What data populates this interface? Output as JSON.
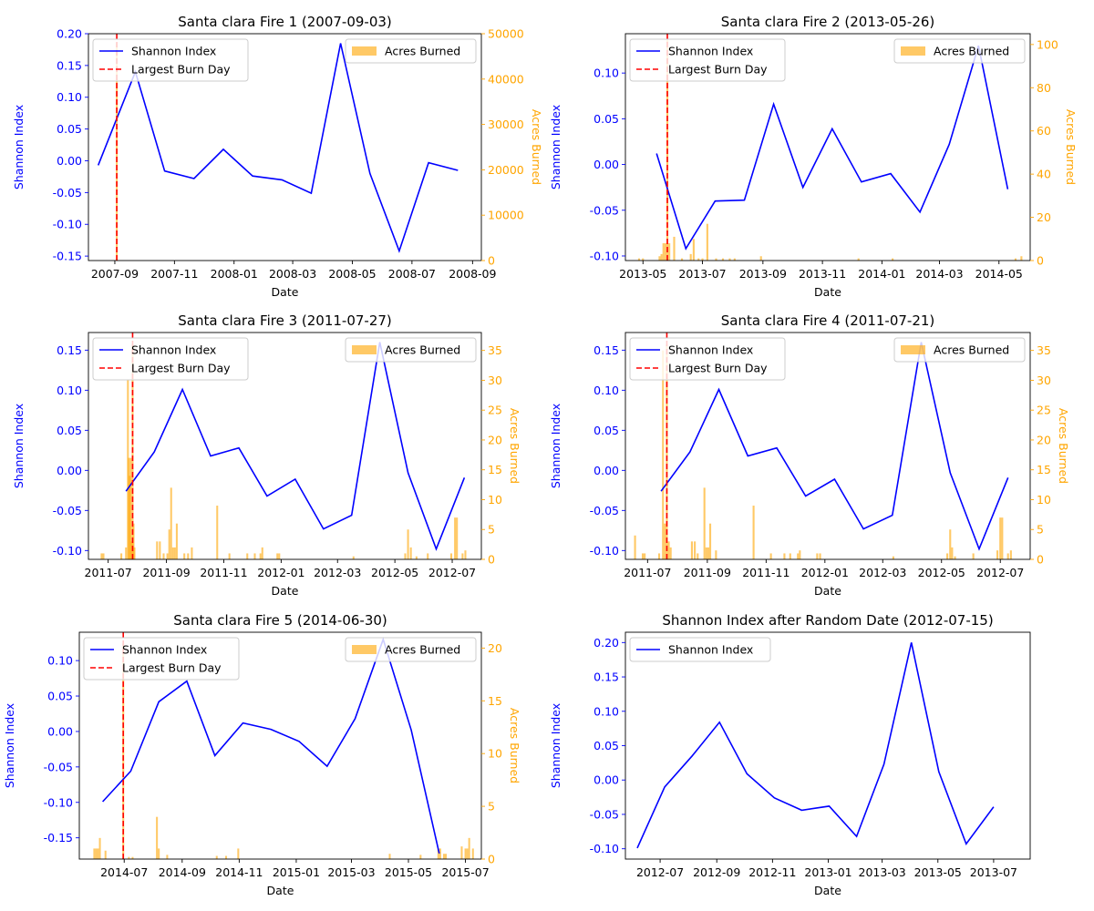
{
  "figure": {
    "background": "#ffffff"
  },
  "colors": {
    "shannon": "#0000ff",
    "acres": "#ffa500",
    "burn_line": "#ff0000",
    "axis": "#000000"
  },
  "legend_labels": {
    "shannon": "Shannon Index",
    "burn": "Largest Burn Day",
    "acres": "Acres Burned"
  },
  "chart_data": [
    {
      "type": "line",
      "title": "Santa clara Fire 1 (2007-09-03)",
      "xlabel": "Date",
      "ylabel": "Shannon Index",
      "y2label": "Acres Burned",
      "xlim": [
        "2007-08-05",
        "2008-09-10"
      ],
      "ylim": [
        -0.157,
        0.2
      ],
      "y2lim": [
        0,
        50000
      ],
      "xticks": [
        "2007-09",
        "2007-11",
        "2008-01",
        "2008-03",
        "2008-05",
        "2008-07",
        "2008-09"
      ],
      "yticks": [
        -0.15,
        -0.1,
        -0.05,
        0.0,
        0.05,
        0.1,
        0.15,
        0.2
      ],
      "y2ticks": [
        0,
        10000,
        20000,
        30000,
        40000,
        50000
      ],
      "legend_left": "upper-left",
      "legend_right": "upper-right",
      "series": [
        {
          "name": "Shannon Index",
          "x": [
            "2007-08-15",
            "2007-09-22",
            "2007-10-22",
            "2007-11-21",
            "2007-12-21",
            "2008-01-20",
            "2008-02-19",
            "2008-03-20",
            "2008-04-19",
            "2008-05-19",
            "2008-06-18",
            "2008-07-18",
            "2008-08-17"
          ],
          "y": [
            -0.007,
            0.14,
            -0.016,
            -0.028,
            0.018,
            -0.024,
            -0.03,
            -0.051,
            0.185,
            -0.02,
            -0.142,
            -0.003,
            -0.015
          ]
        }
      ],
      "burn_day": "2007-09-03",
      "bars": {
        "name": "Acres Burned",
        "x": [
          "2007-09-03"
        ],
        "y": [
          48000
        ],
        "width_days": 1
      }
    },
    {
      "type": "line",
      "title": "Santa clara Fire 2 (2013-05-26)",
      "xlabel": "Date",
      "ylabel": "Shannon Index",
      "y2label": "Acres Burned",
      "xlim": [
        "2013-04-13",
        "2014-06-02"
      ],
      "ylim": [
        -0.105,
        0.143
      ],
      "y2lim": [
        0,
        105
      ],
      "xticks": [
        "2013-05",
        "2013-07",
        "2013-09",
        "2013-11",
        "2014-01",
        "2014-03",
        "2014-05"
      ],
      "yticks": [
        -0.1,
        -0.05,
        0.0,
        0.05,
        0.1
      ],
      "y2ticks": [
        0,
        20,
        40,
        60,
        80,
        100
      ],
      "legend_left": "upper-left",
      "legend_right": "upper-right",
      "series": [
        {
          "name": "Shannon Index",
          "x": [
            "2013-05-15",
            "2013-06-14",
            "2013-07-14",
            "2013-08-13",
            "2013-09-12",
            "2013-10-12",
            "2013-11-11",
            "2013-12-11",
            "2014-01-10",
            "2014-02-09",
            "2014-03-11",
            "2014-04-10",
            "2014-05-10"
          ],
          "y": [
            0.012,
            -0.092,
            -0.04,
            -0.039,
            0.066,
            -0.025,
            0.039,
            -0.019,
            -0.01,
            -0.052,
            0.022,
            0.13,
            -0.027
          ]
        }
      ],
      "burn_day": "2013-05-26",
      "bars": {
        "name": "Acres Burned",
        "x": [
          "2013-04-27",
          "2013-05-01",
          "2013-05-18",
          "2013-05-20",
          "2013-05-22",
          "2013-05-24",
          "2013-05-26",
          "2013-05-28",
          "2013-06-02",
          "2013-06-10",
          "2013-06-19",
          "2013-06-22",
          "2013-06-27",
          "2013-07-01",
          "2013-07-06",
          "2013-07-15",
          "2013-07-22",
          "2013-07-29",
          "2013-08-03",
          "2013-08-30",
          "2013-12-08",
          "2014-01-12",
          "2014-05-18",
          "2014-05-24"
        ],
        "y": [
          1,
          1,
          2,
          3,
          8,
          8,
          102,
          8,
          11,
          1,
          3,
          10,
          1,
          1,
          17,
          1,
          1,
          1,
          1,
          2,
          1,
          1,
          1,
          2
        ],
        "width_days": 2
      }
    },
    {
      "type": "line",
      "title": "Santa clara Fire 3 (2011-07-27)",
      "xlabel": "Date",
      "ylabel": "Shannon Index",
      "y2label": "Acres Burned",
      "xlim": [
        "2011-06-10",
        "2012-08-01"
      ],
      "ylim": [
        -0.111,
        0.172
      ],
      "y2lim": [
        0,
        38
      ],
      "xticks": [
        "2011-07",
        "2011-09",
        "2011-11",
        "2012-01",
        "2012-03",
        "2012-05",
        "2012-07"
      ],
      "yticks": [
        -0.1,
        -0.05,
        0.0,
        0.05,
        0.1,
        0.15
      ],
      "y2ticks": [
        0,
        5,
        10,
        15,
        20,
        25,
        30,
        35
      ],
      "legend_left": "upper-left",
      "legend_right": "upper-right",
      "series": [
        {
          "name": "Shannon Index",
          "x": [
            "2011-07-20",
            "2011-08-19",
            "2011-09-18",
            "2011-10-18",
            "2011-11-17",
            "2011-12-17",
            "2012-01-16",
            "2012-02-15",
            "2012-03-16",
            "2012-04-15",
            "2012-05-15",
            "2012-06-14",
            "2012-07-14"
          ],
          "y": [
            -0.026,
            0.023,
            0.101,
            0.018,
            0.028,
            -0.032,
            -0.011,
            -0.073,
            -0.056,
            0.16,
            -0.003,
            -0.098,
            -0.009
          ]
        }
      ],
      "burn_day": "2011-07-27",
      "bars": {
        "name": "Acres Burned",
        "x": [
          "2011-06-24",
          "2011-06-26",
          "2011-07-15",
          "2011-07-20",
          "2011-07-22",
          "2011-07-23",
          "2011-07-24",
          "2011-07-25",
          "2011-07-26",
          "2011-07-27",
          "2011-07-28",
          "2011-07-29",
          "2011-08-22",
          "2011-08-25",
          "2011-08-29",
          "2011-09-02",
          "2011-09-04",
          "2011-09-06",
          "2011-09-08",
          "2011-09-10",
          "2011-09-12",
          "2011-09-20",
          "2011-09-24",
          "2011-09-28",
          "2011-10-25",
          "2011-11-07",
          "2011-11-26",
          "2011-12-04",
          "2011-12-10",
          "2011-12-12",
          "2011-12-28",
          "2011-12-30",
          "2012-03-18",
          "2012-05-12",
          "2012-05-15",
          "2012-05-18",
          "2012-05-24",
          "2012-06-05",
          "2012-06-30",
          "2012-07-04",
          "2012-07-06",
          "2012-07-12",
          "2012-07-15"
        ],
        "y": [
          1,
          1,
          1,
          2,
          30,
          17,
          14,
          17,
          3,
          36,
          6,
          2,
          3,
          3,
          1,
          1,
          5,
          12,
          2,
          2,
          6,
          1,
          1,
          2,
          9,
          1,
          1,
          1,
          1,
          2,
          1,
          1,
          0.5,
          1,
          5,
          2,
          0.5,
          1,
          1,
          7,
          7,
          1,
          1.5
        ],
        "width_days": 2
      }
    },
    {
      "type": "line",
      "title": "Santa clara Fire 4 (2011-07-21)",
      "xlabel": "Date",
      "ylabel": "Shannon Index",
      "y2label": "Acres Burned",
      "xlim": [
        "2011-06-08",
        "2012-08-01"
      ],
      "ylim": [
        -0.111,
        0.172
      ],
      "y2lim": [
        0,
        38
      ],
      "xticks": [
        "2011-07",
        "2011-09",
        "2011-11",
        "2012-01",
        "2012-03",
        "2012-05",
        "2012-07"
      ],
      "yticks": [
        -0.1,
        -0.05,
        0.0,
        0.05,
        0.1,
        0.15
      ],
      "y2ticks": [
        0,
        5,
        10,
        15,
        20,
        25,
        30,
        35
      ],
      "legend_left": "upper-left",
      "legend_right": "upper-right",
      "series": [
        {
          "name": "Shannon Index",
          "x": [
            "2011-07-15",
            "2011-08-14",
            "2011-09-13",
            "2011-10-13",
            "2011-11-12",
            "2011-12-12",
            "2012-01-11",
            "2012-02-10",
            "2012-03-11",
            "2012-04-10",
            "2012-05-10",
            "2012-06-09",
            "2012-07-09"
          ],
          "y": [
            -0.026,
            0.023,
            0.101,
            0.018,
            0.028,
            -0.032,
            -0.011,
            -0.073,
            -0.056,
            0.16,
            -0.003,
            -0.098,
            -0.009
          ]
        }
      ],
      "burn_day": "2011-07-21",
      "bars": {
        "name": "Acres Burned",
        "x": [
          "2011-06-18",
          "2011-06-26",
          "2011-06-28",
          "2011-07-13",
          "2011-07-17",
          "2011-07-19",
          "2011-07-21",
          "2011-07-23",
          "2011-07-25",
          "2011-08-16",
          "2011-08-19",
          "2011-08-22",
          "2011-08-29",
          "2011-08-31",
          "2011-09-02",
          "2011-09-04",
          "2011-09-10",
          "2011-10-19",
          "2011-11-06",
          "2011-11-20",
          "2011-11-26",
          "2011-12-04",
          "2011-12-06",
          "2011-12-24",
          "2011-12-27",
          "2012-03-12",
          "2012-05-07",
          "2012-05-10",
          "2012-05-12",
          "2012-05-15",
          "2012-06-03",
          "2012-06-28",
          "2012-07-01",
          "2012-07-03",
          "2012-07-09",
          "2012-07-12"
        ],
        "y": [
          4,
          1,
          1,
          1,
          35,
          6,
          36,
          3,
          2,
          3,
          3,
          1,
          12,
          2,
          2,
          6,
          1.5,
          9,
          1,
          1,
          1,
          1,
          1.5,
          1,
          1,
          0.5,
          1,
          5,
          2,
          0.5,
          1,
          1.5,
          7,
          7,
          1,
          1.5
        ],
        "width_days": 2
      }
    },
    {
      "type": "line",
      "title": "Santa clara Fire 5 (2014-06-30)",
      "xlabel": "Date",
      "ylabel": "Shannon Index",
      "y2label": "Acres Burned",
      "xlim": [
        "2014-05-14",
        "2015-07-18"
      ],
      "ylim": [
        -0.18,
        0.14
      ],
      "y2lim": [
        0,
        21.5
      ],
      "xticks": [
        "2014-07",
        "2014-09",
        "2014-11",
        "2015-01",
        "2015-03",
        "2015-05",
        "2015-07"
      ],
      "yticks": [
        -0.15,
        -0.1,
        -0.05,
        0.0,
        0.05,
        0.1
      ],
      "y2ticks": [
        0,
        5,
        10,
        15,
        20
      ],
      "legend_left": "upper-left",
      "legend_right": "upper-right",
      "series": [
        {
          "name": "Shannon Index",
          "x": [
            "2014-06-08",
            "2014-07-08",
            "2014-08-07",
            "2014-09-06",
            "2014-10-06",
            "2014-11-05",
            "2014-12-05",
            "2015-01-04",
            "2015-02-03",
            "2015-03-05",
            "2015-04-04",
            "2015-05-04",
            "2015-06-03"
          ],
          "y": [
            -0.099,
            -0.056,
            0.042,
            0.071,
            -0.034,
            0.012,
            0.003,
            -0.014,
            -0.049,
            0.018,
            0.13,
            0.002,
            -0.172
          ]
        }
      ],
      "burn_day": "2014-06-30",
      "bars": {
        "name": "Acres Burned",
        "x": [
          "2014-05-30",
          "2014-06-01",
          "2014-06-03",
          "2014-06-05",
          "2014-06-11",
          "2014-06-30",
          "2014-07-06",
          "2014-07-10",
          "2014-08-05",
          "2014-08-07",
          "2014-08-16",
          "2014-10-08",
          "2014-10-18",
          "2014-10-31",
          "2015-04-11",
          "2015-05-14",
          "2015-06-02",
          "2015-06-04",
          "2015-06-08",
          "2015-06-10",
          "2015-06-27",
          "2015-07-01",
          "2015-07-03",
          "2015-07-05",
          "2015-07-09"
        ],
        "y": [
          1,
          1,
          1,
          2,
          0.8,
          20.5,
          0.2,
          0.2,
          4,
          1,
          0.4,
          0.3,
          0.3,
          1,
          0.5,
          0.4,
          1,
          1,
          0.5,
          0.5,
          1.2,
          1,
          1,
          2,
          1
        ],
        "width_days": 2
      }
    },
    {
      "type": "line",
      "title": "Shannon Index after Random Date (2012-07-15)",
      "xlabel": "Date",
      "ylabel": "Shannon Index",
      "xlim": [
        "2012-05-24",
        "2013-08-10"
      ],
      "ylim": [
        -0.115,
        0.215
      ],
      "xticks": [
        "2012-07",
        "2012-09",
        "2012-11",
        "2013-01",
        "2013-03",
        "2013-05",
        "2013-07"
      ],
      "yticks": [
        -0.1,
        -0.05,
        0.0,
        0.05,
        0.1,
        0.15,
        0.2
      ],
      "legend_left": "upper-left",
      "series": [
        {
          "name": "Shannon Index",
          "x": [
            "2012-06-06",
            "2012-07-06",
            "2012-08-05",
            "2012-09-04",
            "2012-10-04",
            "2012-11-03",
            "2012-12-03",
            "2013-01-02",
            "2013-02-01",
            "2013-03-03",
            "2013-04-02",
            "2013-05-02",
            "2013-06-01",
            "2013-07-01"
          ],
          "y": [
            -0.099,
            -0.01,
            0.035,
            0.084,
            0.009,
            -0.026,
            -0.044,
            -0.038,
            -0.082,
            0.023,
            0.2,
            0.012,
            -0.093,
            -0.039
          ]
        }
      ]
    }
  ]
}
